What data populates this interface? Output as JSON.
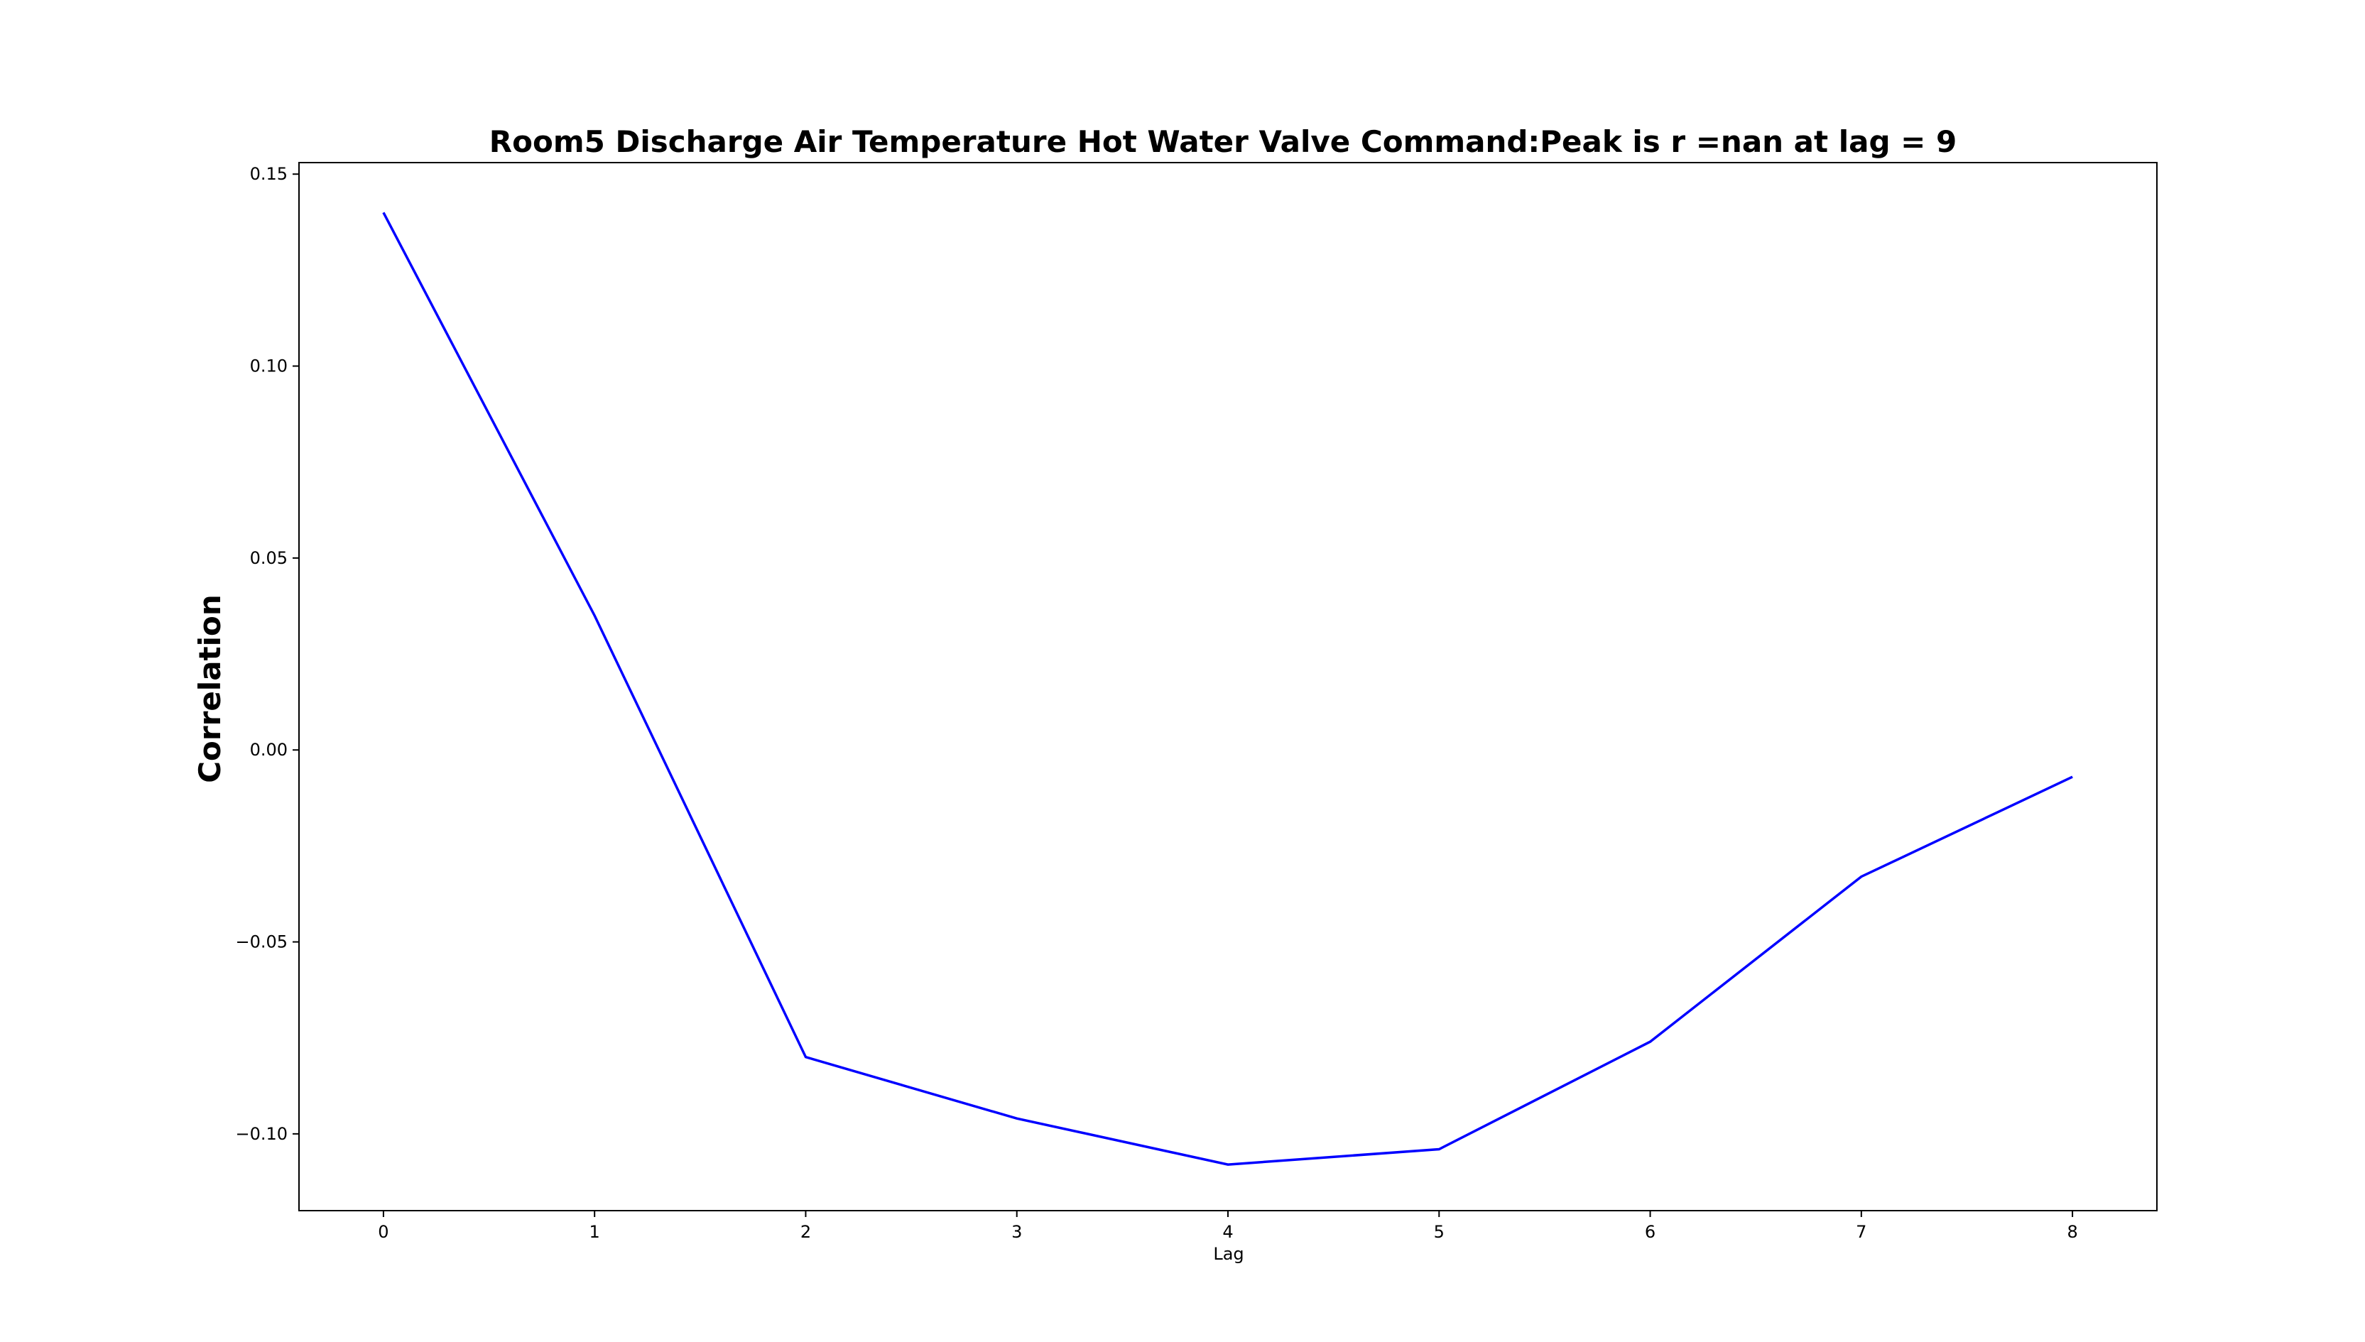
{
  "chart_data": {
    "type": "line",
    "title": "Room5 Discharge Air Temperature Hot Water Valve Command:Peak is r =nan at lag = 9",
    "xlabel": "Lag",
    "ylabel": "Correlation",
    "x": [
      0,
      1,
      2,
      3,
      4,
      5,
      6,
      7,
      8
    ],
    "x_ticks": [
      "0",
      "1",
      "2",
      "3",
      "4",
      "5",
      "6",
      "7",
      "8"
    ],
    "y_ticks": [
      0.15,
      0.1,
      0.05,
      0.0,
      -0.05,
      -0.1
    ],
    "y_tick_labels": [
      "0.15",
      "0.10",
      "0.05",
      "0.00",
      "−0.05",
      "−0.10"
    ],
    "xlim": [
      -0.4,
      8.4
    ],
    "ylim": [
      -0.12,
      0.153
    ],
    "grid": false,
    "series": [
      {
        "values": [
          0.14,
          0.035,
          -0.08,
          -0.096,
          -0.108,
          -0.104,
          -0.076,
          -0.033,
          -0.007
        ],
        "color": "#0000ff"
      }
    ]
  }
}
